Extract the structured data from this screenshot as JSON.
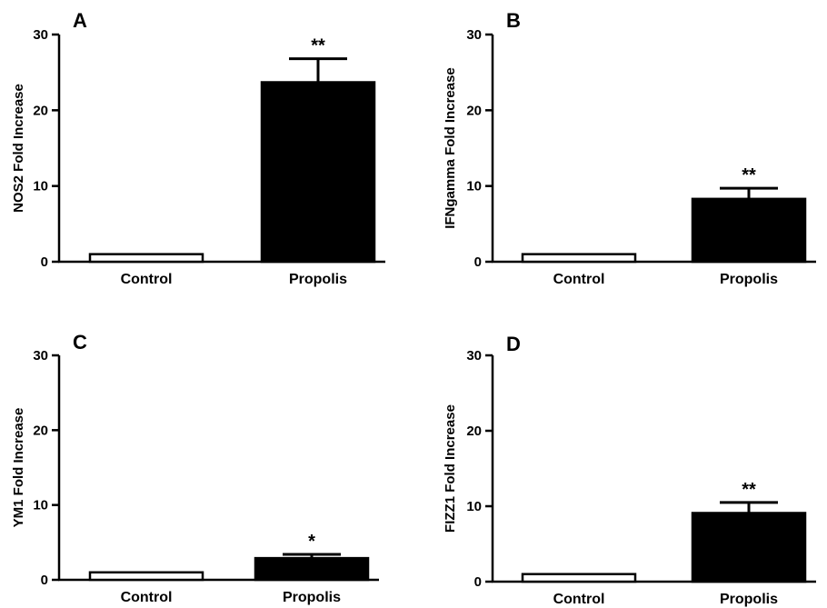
{
  "colors": {
    "control_fill": "#ffffff",
    "propolis_fill": "#000000",
    "stroke": "#000000"
  },
  "chart_data": [
    {
      "panel": "A",
      "type": "bar",
      "categories": [
        "Control",
        "Propolis"
      ],
      "values": [
        1.0,
        23.7
      ],
      "error": [
        0.05,
        3.1
      ],
      "significance": [
        "",
        "**"
      ],
      "ylabel": "NOS2 Fold Increase",
      "ylim": [
        0,
        30
      ],
      "yticks": [
        "0",
        "10",
        "20",
        "30"
      ],
      "grid": false
    },
    {
      "panel": "B",
      "type": "bar",
      "categories": [
        "Control",
        "Propolis"
      ],
      "values": [
        1.0,
        8.3
      ],
      "error": [
        0.05,
        1.4
      ],
      "significance": [
        "",
        "**"
      ],
      "ylabel": "IFNgamma Fold Increase",
      "ylim": [
        0,
        30
      ],
      "yticks": [
        "0",
        "10",
        "20",
        "30"
      ],
      "grid": false
    },
    {
      "panel": "C",
      "type": "bar",
      "categories": [
        "Control",
        "Propolis"
      ],
      "values": [
        1.0,
        2.9
      ],
      "error": [
        0.05,
        0.5
      ],
      "significance": [
        "",
        "*"
      ],
      "ylabel": "YM1 Fold Increase",
      "ylim": [
        0,
        30
      ],
      "yticks": [
        "0",
        "10",
        "20",
        "30"
      ],
      "grid": false
    },
    {
      "panel": "D",
      "type": "bar",
      "categories": [
        "Control",
        "Propolis"
      ],
      "values": [
        1.0,
        9.1
      ],
      "error": [
        0.05,
        1.4
      ],
      "significance": [
        "",
        "**"
      ],
      "ylabel": "FIZZ1 Fold Increase",
      "ylim": [
        0,
        30
      ],
      "yticks": [
        "0",
        "10",
        "20",
        "30"
      ],
      "grid": false
    }
  ]
}
